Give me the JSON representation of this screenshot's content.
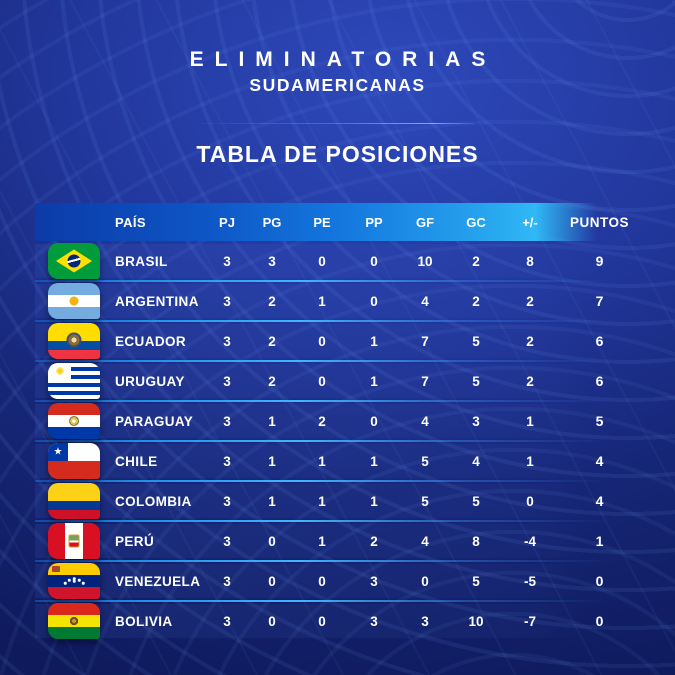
{
  "header": {
    "title": "ELIMINATORIAS",
    "subtitle": "SUDAMERICANAS",
    "section_title": "TABLA DE POSICIONES"
  },
  "table": {
    "columns": [
      "PAÍS",
      "PJ",
      "PG",
      "PE",
      "PP",
      "GF",
      "GC",
      "+/-",
      "PUNTOS"
    ],
    "rows": [
      {
        "flag": "brasil",
        "pais": "BRASIL",
        "pj": "3",
        "pg": "3",
        "pe": "0",
        "pp": "0",
        "gf": "10",
        "gc": "2",
        "dif": "8",
        "puntos": "9"
      },
      {
        "flag": "argentina",
        "pais": "ARGENTINA",
        "pj": "3",
        "pg": "2",
        "pe": "1",
        "pp": "0",
        "gf": "4",
        "gc": "2",
        "dif": "2",
        "puntos": "7"
      },
      {
        "flag": "ecuador",
        "pais": "ECUADOR",
        "pj": "3",
        "pg": "2",
        "pe": "0",
        "pp": "1",
        "gf": "7",
        "gc": "5",
        "dif": "2",
        "puntos": "6"
      },
      {
        "flag": "uruguay",
        "pais": "URUGUAY",
        "pj": "3",
        "pg": "2",
        "pe": "0",
        "pp": "1",
        "gf": "7",
        "gc": "5",
        "dif": "2",
        "puntos": "6"
      },
      {
        "flag": "paraguay",
        "pais": "PARAGUAY",
        "pj": "3",
        "pg": "1",
        "pe": "2",
        "pp": "0",
        "gf": "4",
        "gc": "3",
        "dif": "1",
        "puntos": "5"
      },
      {
        "flag": "chile",
        "pais": "CHILE",
        "pj": "3",
        "pg": "1",
        "pe": "1",
        "pp": "1",
        "gf": "5",
        "gc": "4",
        "dif": "1",
        "puntos": "4"
      },
      {
        "flag": "colombia",
        "pais": "COLOMBIA",
        "pj": "3",
        "pg": "1",
        "pe": "1",
        "pp": "1",
        "gf": "5",
        "gc": "5",
        "dif": "0",
        "puntos": "4"
      },
      {
        "flag": "peru",
        "pais": "PERÚ",
        "pj": "3",
        "pg": "0",
        "pe": "1",
        "pp": "2",
        "gf": "4",
        "gc": "8",
        "dif": "-4",
        "puntos": "1"
      },
      {
        "flag": "venezuela",
        "pais": "VENEZUELA",
        "pj": "3",
        "pg": "0",
        "pe": "0",
        "pp": "3",
        "gf": "0",
        "gc": "5",
        "dif": "-5",
        "puntos": "0"
      },
      {
        "flag": "bolivia",
        "pais": "BOLIVIA",
        "pj": "3",
        "pg": "0",
        "pe": "0",
        "pp": "3",
        "gf": "3",
        "gc": "10",
        "dif": "-7",
        "puntos": "0"
      }
    ]
  },
  "colors": {
    "background_navy": "#16246f",
    "background_light": "#2e49ba",
    "header_bar_left": "#0b3ba8",
    "header_bar_right": "#2fb9f5",
    "separator_cyan": "#41b6ff",
    "text": "#ffffff"
  }
}
